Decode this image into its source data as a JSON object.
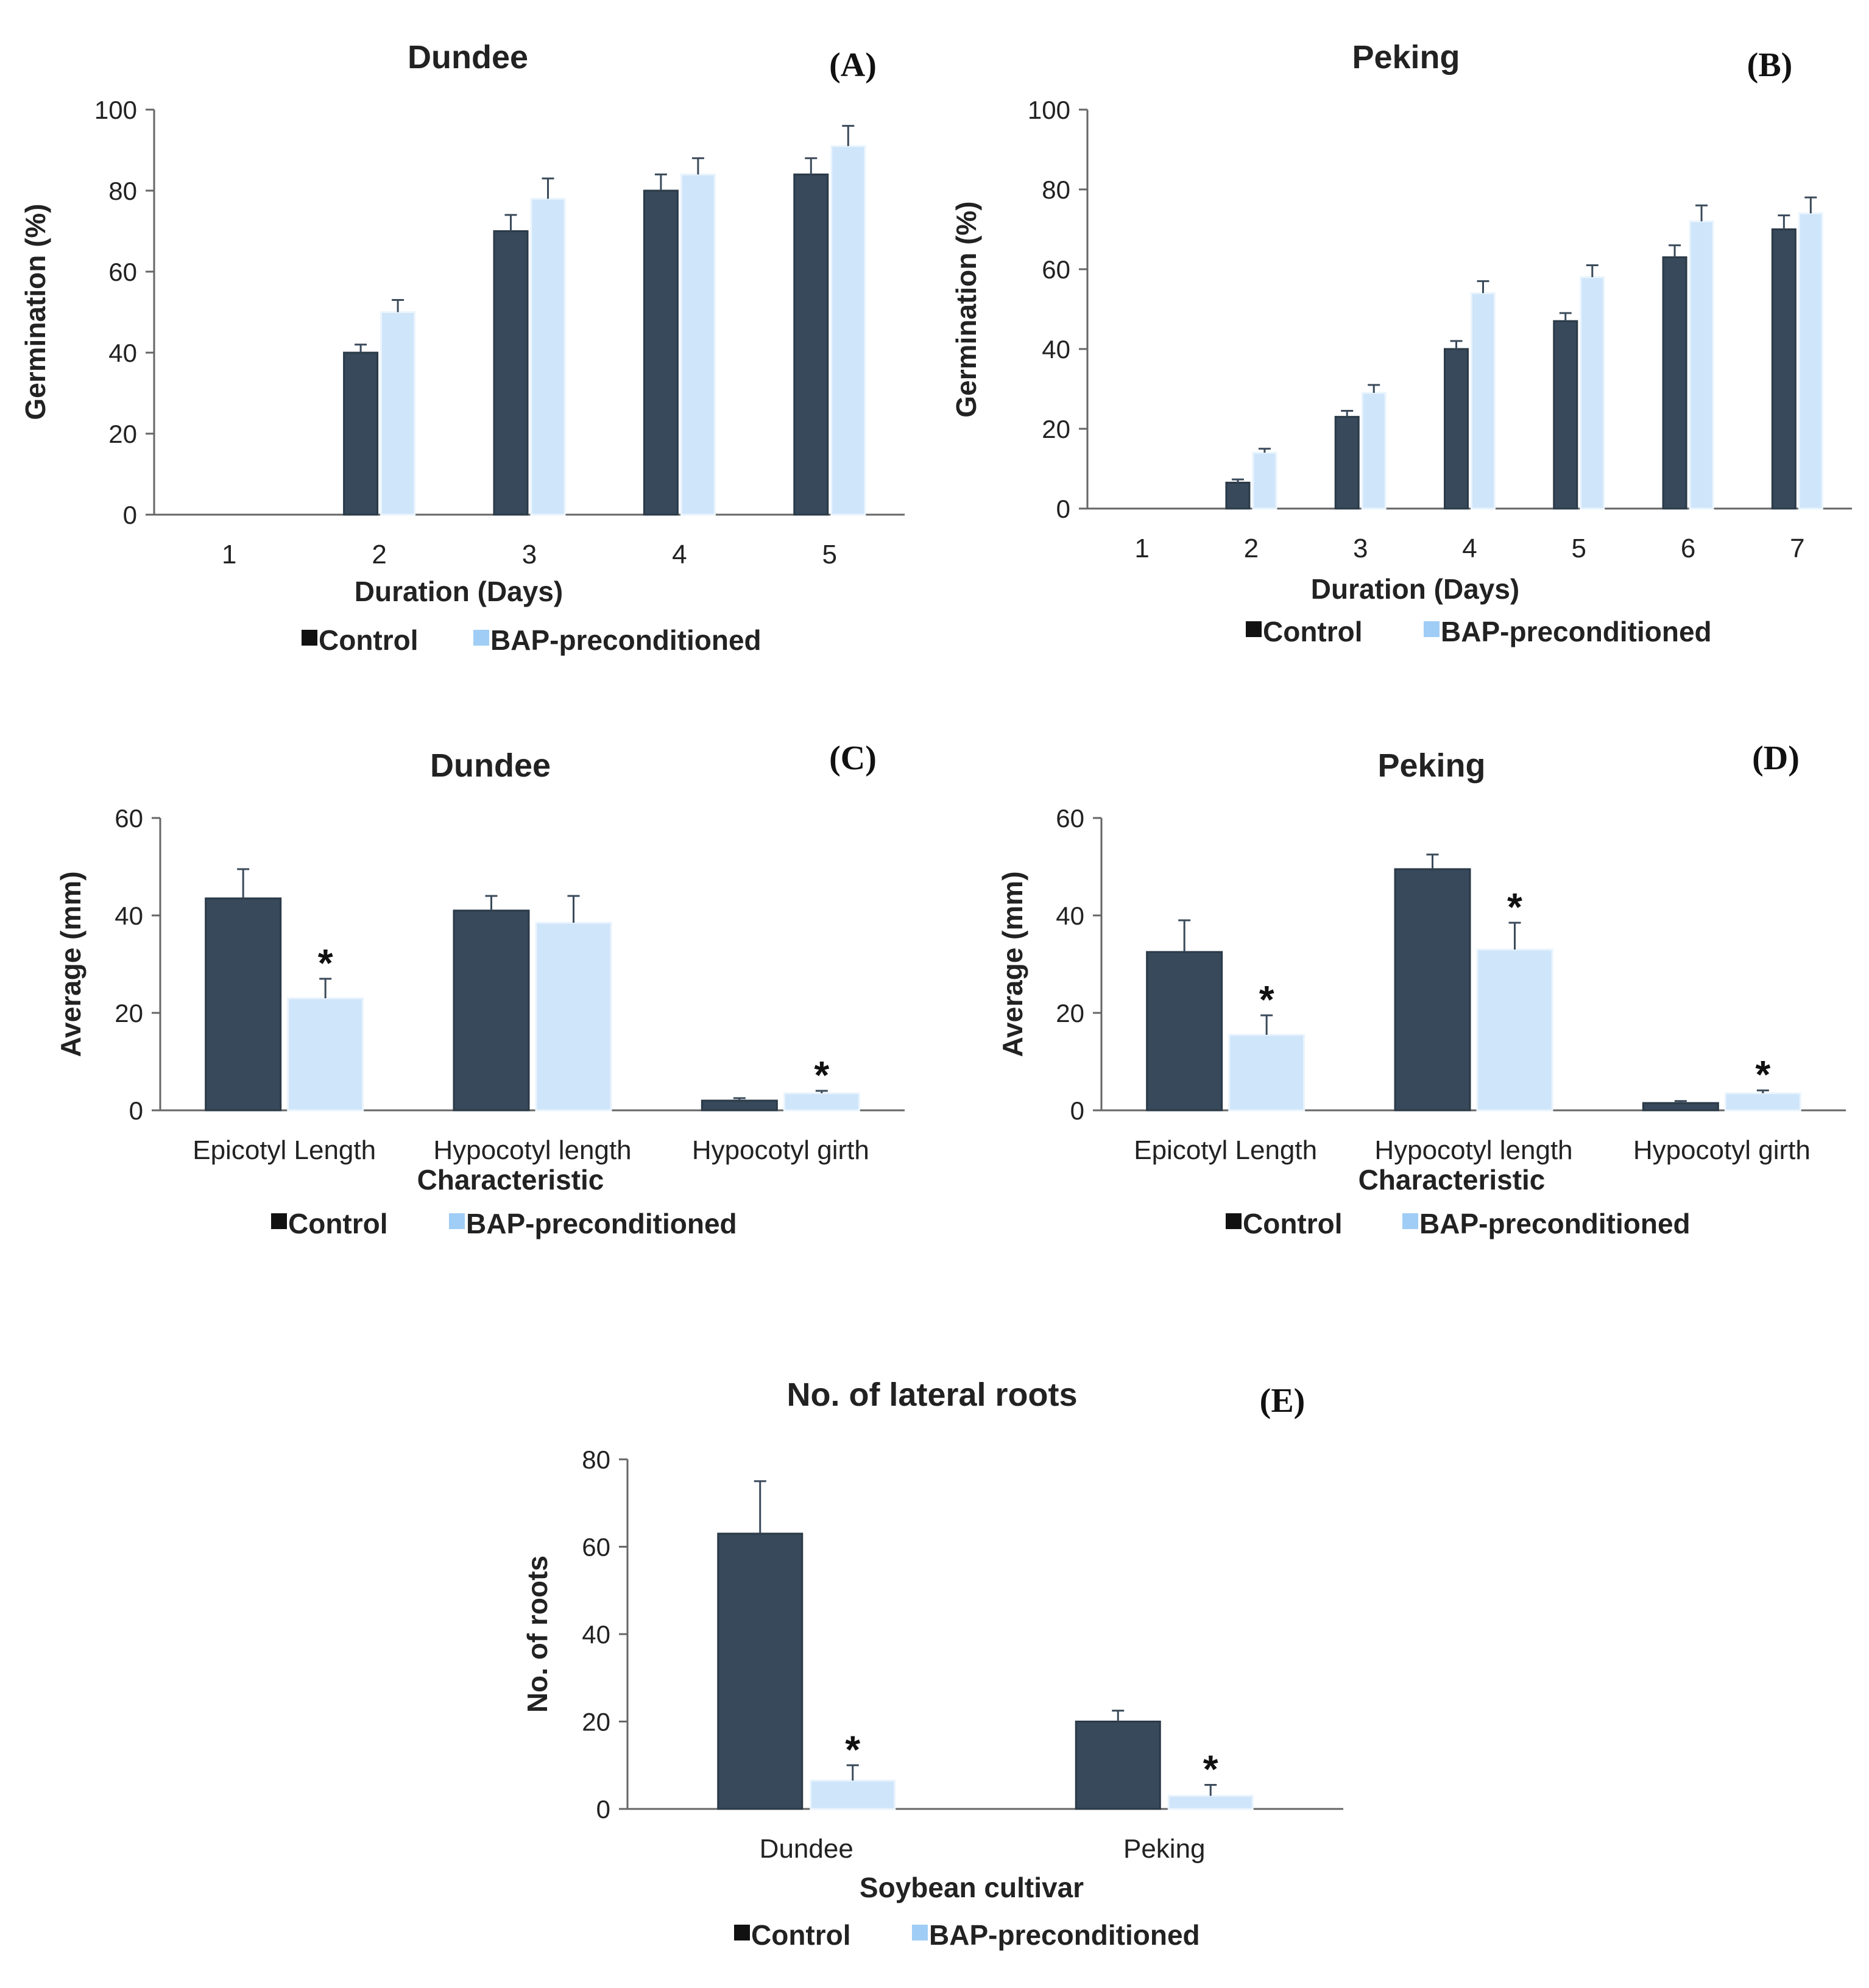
{
  "colors": {
    "control": "#37495a",
    "bap": "#cfe5fa",
    "bap_legend": "#9fcdf5",
    "axis": "#666666"
  },
  "legend": {
    "control": "Control",
    "bap": "BAP-preconditioned"
  },
  "chart_data": [
    {
      "id": "A",
      "panel_label": "(A)",
      "type": "bar",
      "title": "Dundee",
      "xlabel": "Duration (Days)",
      "ylabel": "Germination (%)",
      "ylim": [
        0,
        100
      ],
      "yticks": [
        0,
        20,
        40,
        60,
        80,
        100
      ],
      "categories": [
        "1",
        "2",
        "3",
        "4",
        "5"
      ],
      "series": [
        {
          "name": "Control",
          "values": [
            0,
            40,
            70,
            80,
            84
          ],
          "errors": [
            0,
            2,
            4,
            4,
            4
          ]
        },
        {
          "name": "BAP-preconditioned",
          "values": [
            0,
            50,
            78,
            84,
            91
          ],
          "errors": [
            0,
            3,
            5,
            4,
            5
          ]
        }
      ],
      "significance": [
        [
          false,
          false,
          false,
          false,
          false
        ],
        [
          false,
          false,
          false,
          false,
          false
        ]
      ]
    },
    {
      "id": "B",
      "panel_label": "(B)",
      "type": "bar",
      "title": "Peking",
      "xlabel": "Duration (Days)",
      "ylabel": "Germination (%)",
      "ylim": [
        0,
        100
      ],
      "yticks": [
        0,
        20,
        40,
        60,
        80,
        100
      ],
      "categories": [
        "1",
        "2",
        "3",
        "4",
        "5",
        "6",
        "7"
      ],
      "series": [
        {
          "name": "Control",
          "values": [
            0,
            6.5,
            23,
            40,
            47,
            63,
            70
          ],
          "errors": [
            0,
            0.8,
            1.5,
            2,
            2,
            3,
            3.5
          ]
        },
        {
          "name": "BAP-preconditioned",
          "values": [
            0,
            14,
            29,
            54,
            58,
            72,
            74
          ],
          "errors": [
            0,
            1,
            2,
            3,
            3,
            4,
            4
          ]
        }
      ],
      "significance": [
        [
          false,
          false,
          false,
          false,
          false,
          false,
          false
        ],
        [
          false,
          false,
          false,
          false,
          false,
          false,
          false
        ]
      ]
    },
    {
      "id": "C",
      "panel_label": "(C)",
      "type": "bar",
      "title": "Dundee",
      "xlabel": "Characteristic",
      "ylabel": "Average (mm)",
      "ylim": [
        0,
        60
      ],
      "yticks": [
        0,
        20,
        40,
        60
      ],
      "categories": [
        "Epicotyl Length",
        "Hypocotyl length",
        "Hypocotyl girth"
      ],
      "series": [
        {
          "name": "Control",
          "values": [
            43.5,
            41,
            2
          ],
          "errors": [
            6,
            3,
            0.5
          ]
        },
        {
          "name": "BAP-preconditioned",
          "values": [
            23,
            38.5,
            3.5
          ],
          "errors": [
            4,
            5.5,
            0.5
          ]
        }
      ],
      "significance": [
        [
          false,
          false,
          false
        ],
        [
          true,
          false,
          true
        ]
      ]
    },
    {
      "id": "D",
      "panel_label": "(D)",
      "type": "bar",
      "title": "Peking",
      "xlabel": "Characteristic",
      "ylabel": "Average (mm)",
      "ylim": [
        0,
        60
      ],
      "yticks": [
        0,
        20,
        40,
        60
      ],
      "categories": [
        "Epicotyl Length",
        "Hypocotyl length",
        "Hypocotyl girth"
      ],
      "series": [
        {
          "name": "Control",
          "values": [
            32.5,
            49.5,
            1.5
          ],
          "errors": [
            6.5,
            3,
            0.4
          ]
        },
        {
          "name": "BAP-preconditioned",
          "values": [
            15.5,
            33,
            3.5
          ],
          "errors": [
            4,
            5.5,
            0.6
          ]
        }
      ],
      "significance": [
        [
          false,
          false,
          false
        ],
        [
          true,
          true,
          true
        ]
      ]
    },
    {
      "id": "E",
      "panel_label": "(E)",
      "type": "bar",
      "title": "No. of lateral roots",
      "xlabel": "Soybean cultivar",
      "ylabel": "No. of roots",
      "ylim": [
        0,
        80
      ],
      "yticks": [
        0,
        20,
        40,
        60,
        80
      ],
      "categories": [
        "Dundee",
        "Peking"
      ],
      "series": [
        {
          "name": "Control",
          "values": [
            63,
            20
          ],
          "errors": [
            12,
            2.5
          ]
        },
        {
          "name": "BAP-preconditioned",
          "values": [
            6.5,
            3
          ],
          "errors": [
            3.5,
            2.5
          ]
        }
      ],
      "significance": [
        [
          false,
          false
        ],
        [
          true,
          true
        ]
      ],
      "star_label": "*"
    }
  ]
}
